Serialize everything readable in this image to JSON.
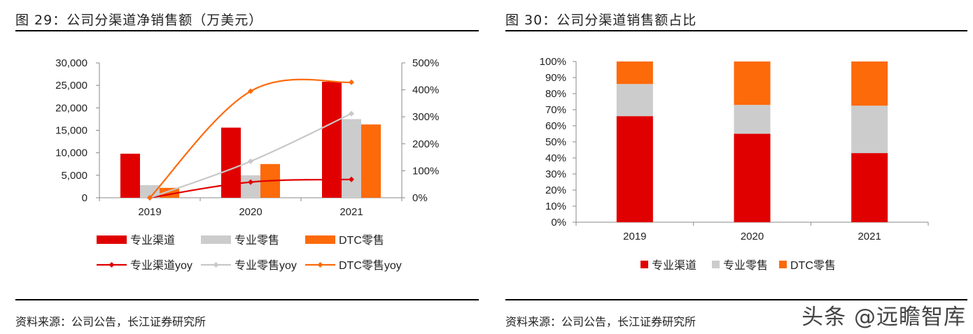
{
  "left": {
    "title": "图 29：公司分渠道净销售额（万美元）",
    "source": "资料来源：公司公告，长江证券研究所"
  },
  "right": {
    "title": "图 30：公司分渠道销售额占比",
    "source": "资料来源：公司公告，长江证券研究所"
  },
  "watermark": "头条 @远瞻智库",
  "colors": {
    "red": "#e00000",
    "gray": "#cccccc",
    "orange": "#fd6a0a"
  },
  "chart_data": [
    {
      "type": "bar+line",
      "title": "公司分渠道净销售额（万美元）",
      "categories": [
        "2019",
        "2020",
        "2021"
      ],
      "y_left": {
        "ticks": [
          "0",
          "5,000",
          "10,000",
          "15,000",
          "20,000",
          "25,000",
          "30,000"
        ],
        "range": [
          0,
          30000
        ]
      },
      "y_right": {
        "ticks": [
          "0%",
          "100%",
          "200%",
          "300%",
          "400%",
          "500%"
        ],
        "range": [
          0,
          500
        ]
      },
      "bar_series": [
        {
          "name": "专业渠道",
          "color": "#e00000",
          "values": [
            9800,
            15600,
            25800
          ]
        },
        {
          "name": "专业零售",
          "color": "#cccccc",
          "values": [
            2800,
            5000,
            17500
          ]
        },
        {
          "name": "DTC零售",
          "color": "#fd6a0a",
          "values": [
            2200,
            7500,
            16300
          ]
        }
      ],
      "line_series": [
        {
          "name": "专业渠道yoy",
          "color": "#e00000",
          "values": [
            0,
            58,
            68
          ]
        },
        {
          "name": "专业零售yoy",
          "color": "#c8c8c8",
          "values": [
            0,
            135,
            312
          ]
        },
        {
          "name": "DTC零售yoy",
          "color": "#fd6a0a",
          "values": [
            0,
            395,
            428
          ]
        }
      ]
    },
    {
      "type": "stacked_bar",
      "title": "公司分渠道销售额占比",
      "categories": [
        "2019",
        "2020",
        "2021"
      ],
      "y": {
        "ticks": [
          "0%",
          "10%",
          "20%",
          "30%",
          "40%",
          "50%",
          "60%",
          "70%",
          "80%",
          "90%",
          "100%"
        ],
        "range": [
          0,
          100
        ]
      },
      "series": [
        {
          "name": "专业渠道",
          "color": "#e00000",
          "values": [
            66,
            55,
            43
          ]
        },
        {
          "name": "专业零售",
          "color": "#cccccc",
          "values": [
            20,
            18,
            29.5
          ]
        },
        {
          "name": "DTC零售",
          "color": "#fd6a0a",
          "values": [
            14,
            27,
            27.5
          ]
        }
      ]
    }
  ]
}
